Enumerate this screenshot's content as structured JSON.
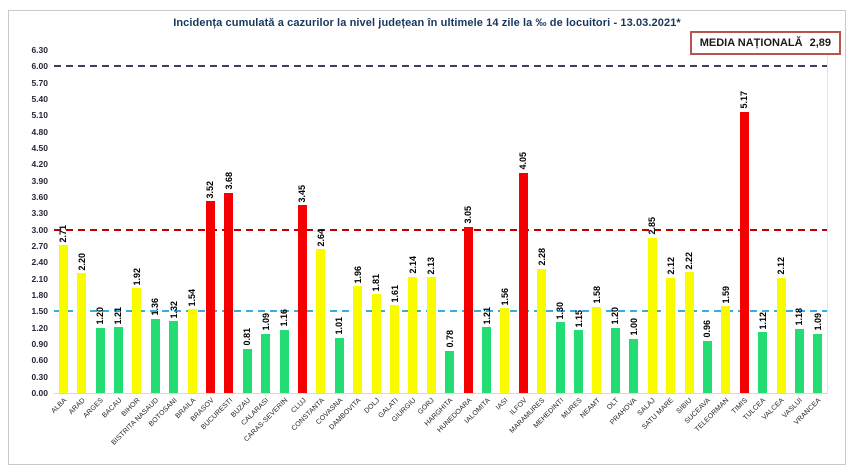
{
  "chart_data": {
    "type": "bar",
    "title": "Incidența cumulată a cazurilor la nivel județean în ultimele 14 zile la ‰ de locuitori - 13.03.2021*",
    "xlabel": "",
    "ylabel": "",
    "ylim": [
      0,
      6.3
    ],
    "ytick_step": 0.3,
    "grid": false,
    "legend": null,
    "categories": [
      "ALBA",
      "ARAD",
      "ARGES",
      "BACAU",
      "BIHOR",
      "BISTRITA NASAUD",
      "BOTOSANI",
      "BRAILA",
      "BRASOV",
      "BUCURESTI",
      "BUZAU",
      "CALARASI",
      "CARAS-SEVERIN",
      "CLUJ",
      "CONSTANTA",
      "COVASNA",
      "DAMBOVITA",
      "DOLJ",
      "GALATI",
      "GIURGIU",
      "GORJ",
      "HARGHITA",
      "HUNEDOARA",
      "IALOMITA",
      "IASI",
      "ILFOV",
      "MARAMURES",
      "MEHEDINTI",
      "MURES",
      "NEAMT",
      "OLT",
      "PRAHOVA",
      "SALAJ",
      "SATU MARE",
      "SIBIU",
      "SUCEAVA",
      "TELEORMAN",
      "TIMIS",
      "TULCEA",
      "VALCEA",
      "VASLUI",
      "VRANCEA"
    ],
    "values": [
      2.71,
      2.2,
      1.2,
      1.21,
      1.92,
      1.36,
      1.32,
      1.54,
      3.52,
      3.68,
      0.81,
      1.09,
      1.16,
      3.45,
      2.64,
      1.01,
      1.96,
      1.81,
      1.61,
      2.14,
      2.13,
      0.78,
      3.05,
      1.21,
      1.56,
      4.05,
      2.28,
      1.3,
      1.15,
      1.58,
      1.2,
      1.0,
      2.85,
      2.12,
      2.22,
      0.96,
      1.59,
      5.17,
      1.12,
      2.12,
      1.18,
      1.09
    ],
    "reference_lines": [
      {
        "value": 6.0,
        "color": "#4A3768",
        "style": "dashed"
      },
      {
        "value": 3.0,
        "color": "#C00000",
        "style": "dashed"
      },
      {
        "value": 1.5,
        "color": "#36ACE2",
        "style": "dashed"
      }
    ],
    "bar_colors": {
      "green": "#24DC74",
      "yellow": "#FBFB00",
      "red": "#F40000"
    },
    "bar_color_rule": {
      "green_below": 1.5,
      "yellow_below": 3.0,
      "red_at_or_above": 3.0
    }
  },
  "national_average": {
    "label": "MEDIA NAȚIONALĂ",
    "value": "2,89"
  }
}
